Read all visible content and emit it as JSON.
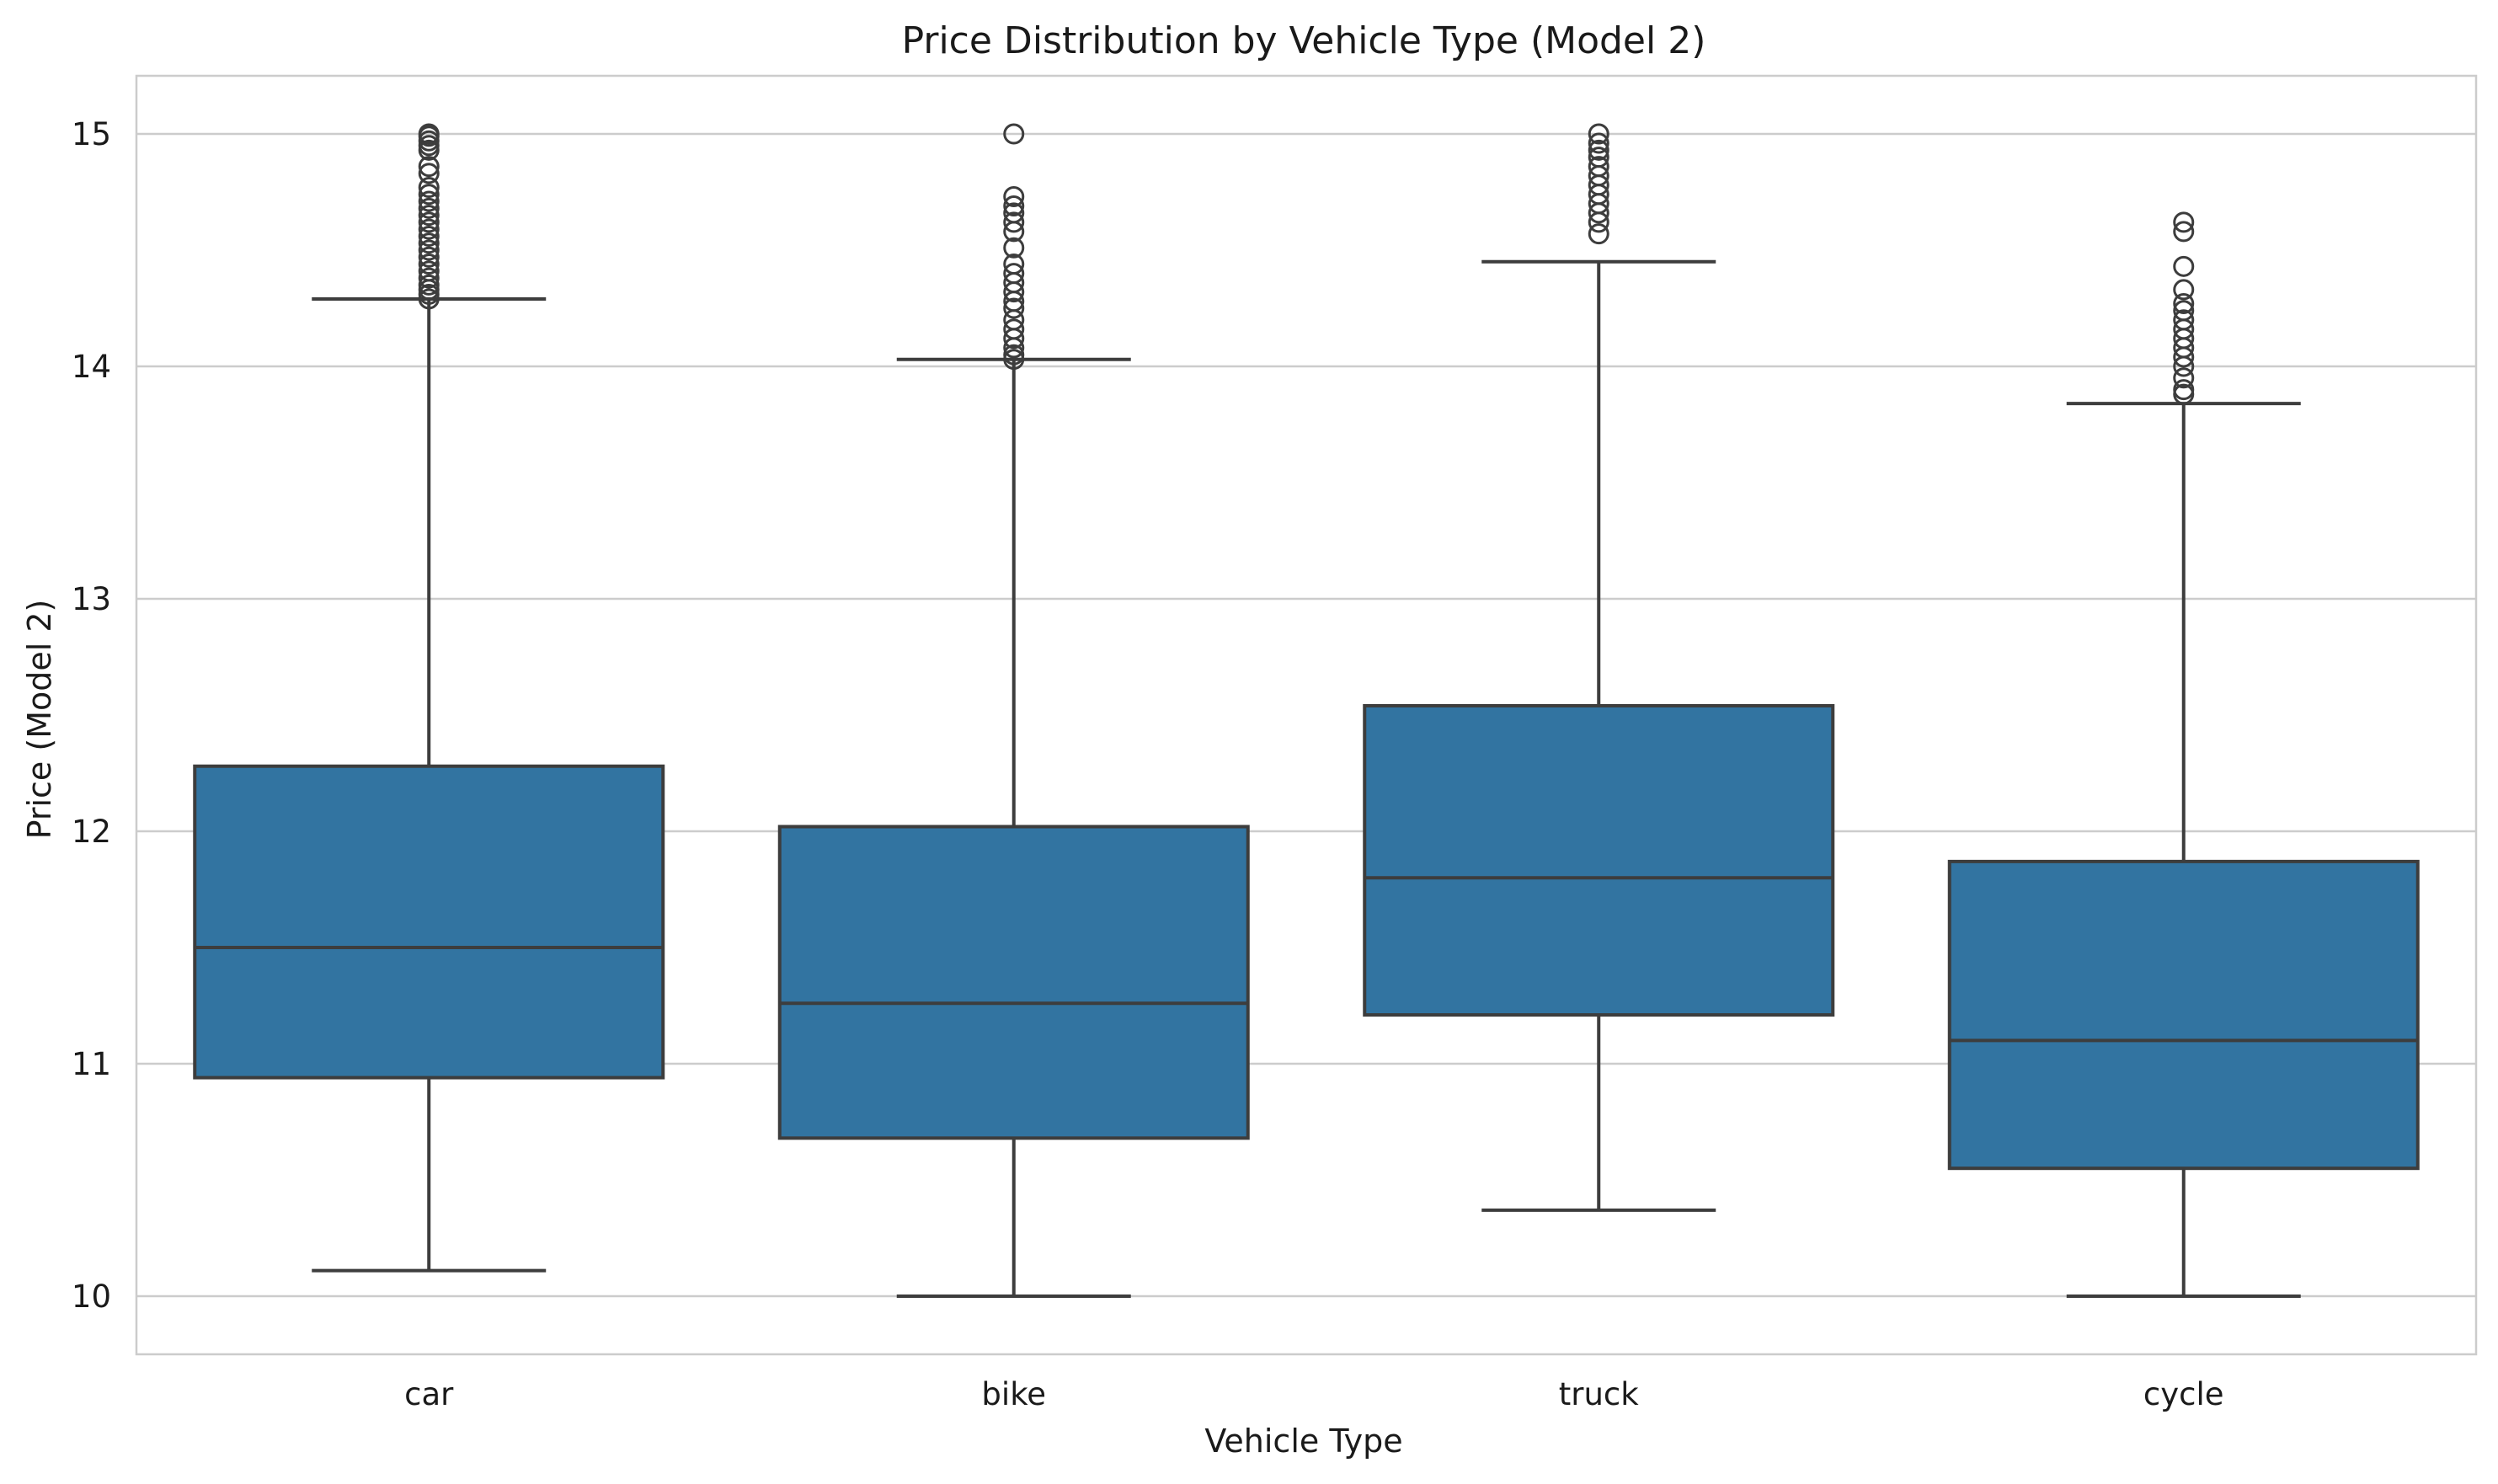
{
  "chart_data": {
    "type": "box",
    "title": "Price Distribution by Vehicle Type (Model 2)",
    "xlabel": "Vehicle Type",
    "ylabel": "Price (Model 2)",
    "ylim": [
      9.75,
      15.25
    ],
    "yticks": [
      10,
      11,
      12,
      13,
      14,
      15
    ],
    "grid": true,
    "color": "#3274a1",
    "line_color": "#3d3d3d",
    "categories": [
      "car",
      "bike",
      "truck",
      "cycle"
    ],
    "boxes": [
      {
        "category": "car",
        "whisker_low": 10.11,
        "q1": 10.94,
        "median": 11.5,
        "q3": 12.28,
        "whisker_high": 14.29,
        "outliers": [
          14.29,
          14.31,
          14.33,
          14.35,
          14.38,
          14.41,
          14.44,
          14.47,
          14.5,
          14.53,
          14.56,
          14.59,
          14.62,
          14.65,
          14.68,
          14.71,
          14.74,
          14.77,
          14.83,
          14.86,
          14.93,
          14.95,
          14.97,
          14.99,
          15.0
        ]
      },
      {
        "category": "bike",
        "whisker_low": 10.0,
        "q1": 10.68,
        "median": 11.26,
        "q3": 12.02,
        "whisker_high": 14.03,
        "outliers": [
          14.03,
          14.05,
          14.08,
          14.12,
          14.16,
          14.2,
          14.25,
          14.28,
          14.32,
          14.36,
          14.4,
          14.44,
          14.51,
          14.58,
          14.62,
          14.66,
          14.69,
          14.73,
          15.0
        ]
      },
      {
        "category": "truck",
        "whisker_low": 10.37,
        "q1": 11.21,
        "median": 11.8,
        "q3": 12.54,
        "whisker_high": 14.45,
        "outliers": [
          14.57,
          14.62,
          14.66,
          14.7,
          14.74,
          14.78,
          14.82,
          14.86,
          14.9,
          14.93,
          14.96,
          15.0
        ]
      },
      {
        "category": "cycle",
        "whisker_low": 10.0,
        "q1": 10.55,
        "median": 11.1,
        "q3": 11.87,
        "whisker_high": 13.84,
        "outliers": [
          13.88,
          13.9,
          13.95,
          14.0,
          14.04,
          14.08,
          14.12,
          14.16,
          14.2,
          14.24,
          14.27,
          14.33,
          14.43,
          14.58,
          14.62
        ]
      }
    ]
  }
}
